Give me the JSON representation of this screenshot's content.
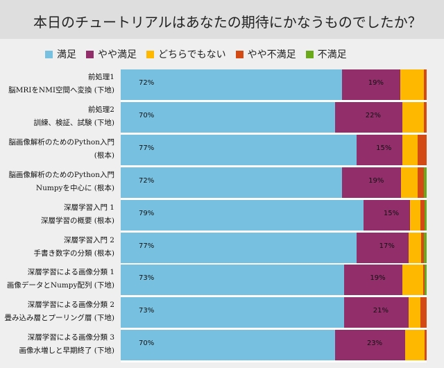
{
  "chart_data": {
    "type": "bar",
    "orientation": "horizontal-stacked-100",
    "title": "本日のチュートリアルはあなたの期待にかなうものでしたか？",
    "legend": [
      "満足",
      "やや満足",
      "どちらでもない",
      "やや不満足",
      "不満足"
    ],
    "colors": [
      "#78c0e0",
      "#922f6b",
      "#ffb800",
      "#d44a14",
      "#6aaa1a"
    ],
    "categories": [
      [
        "前処理1",
        "脳MRIをNMI空間へ変換 (下地)"
      ],
      [
        "前処理2",
        "訓練、検証、試験 (下地)"
      ],
      [
        "脳画像解析のためのPython入門",
        "(根本)"
      ],
      [
        "脳画像解析のためのPython入門",
        "Numpyを中心に (根本)"
      ],
      [
        "深層学習入門 1",
        "深層学習の概要 (根本)"
      ],
      [
        "深層学習入門 2",
        "手書き数字の分類 (根本)"
      ],
      [
        "深層学習による画像分類 1",
        "画像データとNumpy配列 (下地)"
      ],
      [
        "深層学習による画像分類 2",
        "畳み込み層とプーリング層 (下地)"
      ],
      [
        "深層学習による画像分類 3",
        "画像水増しと早期終了 (下地)"
      ]
    ],
    "series": [
      {
        "name": "満足",
        "values": [
          72,
          70,
          77,
          72,
          79,
          77,
          73,
          73,
          70
        ]
      },
      {
        "name": "やや満足",
        "values": [
          19,
          22,
          15,
          19,
          15,
          17,
          19,
          21,
          23
        ]
      },
      {
        "name": "どちらでもない",
        "values": [
          7.7,
          7.2,
          5,
          5.4,
          3.4,
          4.3,
          6.8,
          4,
          6.3
        ]
      },
      {
        "name": "やや不満足",
        "values": [
          0.8,
          0.8,
          3,
          2,
          1.4,
          0.7,
          0.5,
          2,
          0.7
        ]
      },
      {
        "name": "不満足",
        "values": [
          0,
          0,
          0,
          1,
          0.7,
          1,
          0.7,
          0,
          0
        ]
      }
    ],
    "data_labels": [
      [
        "72%",
        "19%"
      ],
      [
        "70%",
        "22%"
      ],
      [
        "77%",
        "15%"
      ],
      [
        "72%",
        "19%"
      ],
      [
        "79%",
        "15%"
      ],
      [
        "77%",
        "17%"
      ],
      [
        "73%",
        "19%"
      ],
      [
        "73%",
        "21%"
      ],
      [
        "70%",
        "23%"
      ]
    ],
    "xlim": [
      0,
      100
    ],
    "legend_position": "top"
  }
}
